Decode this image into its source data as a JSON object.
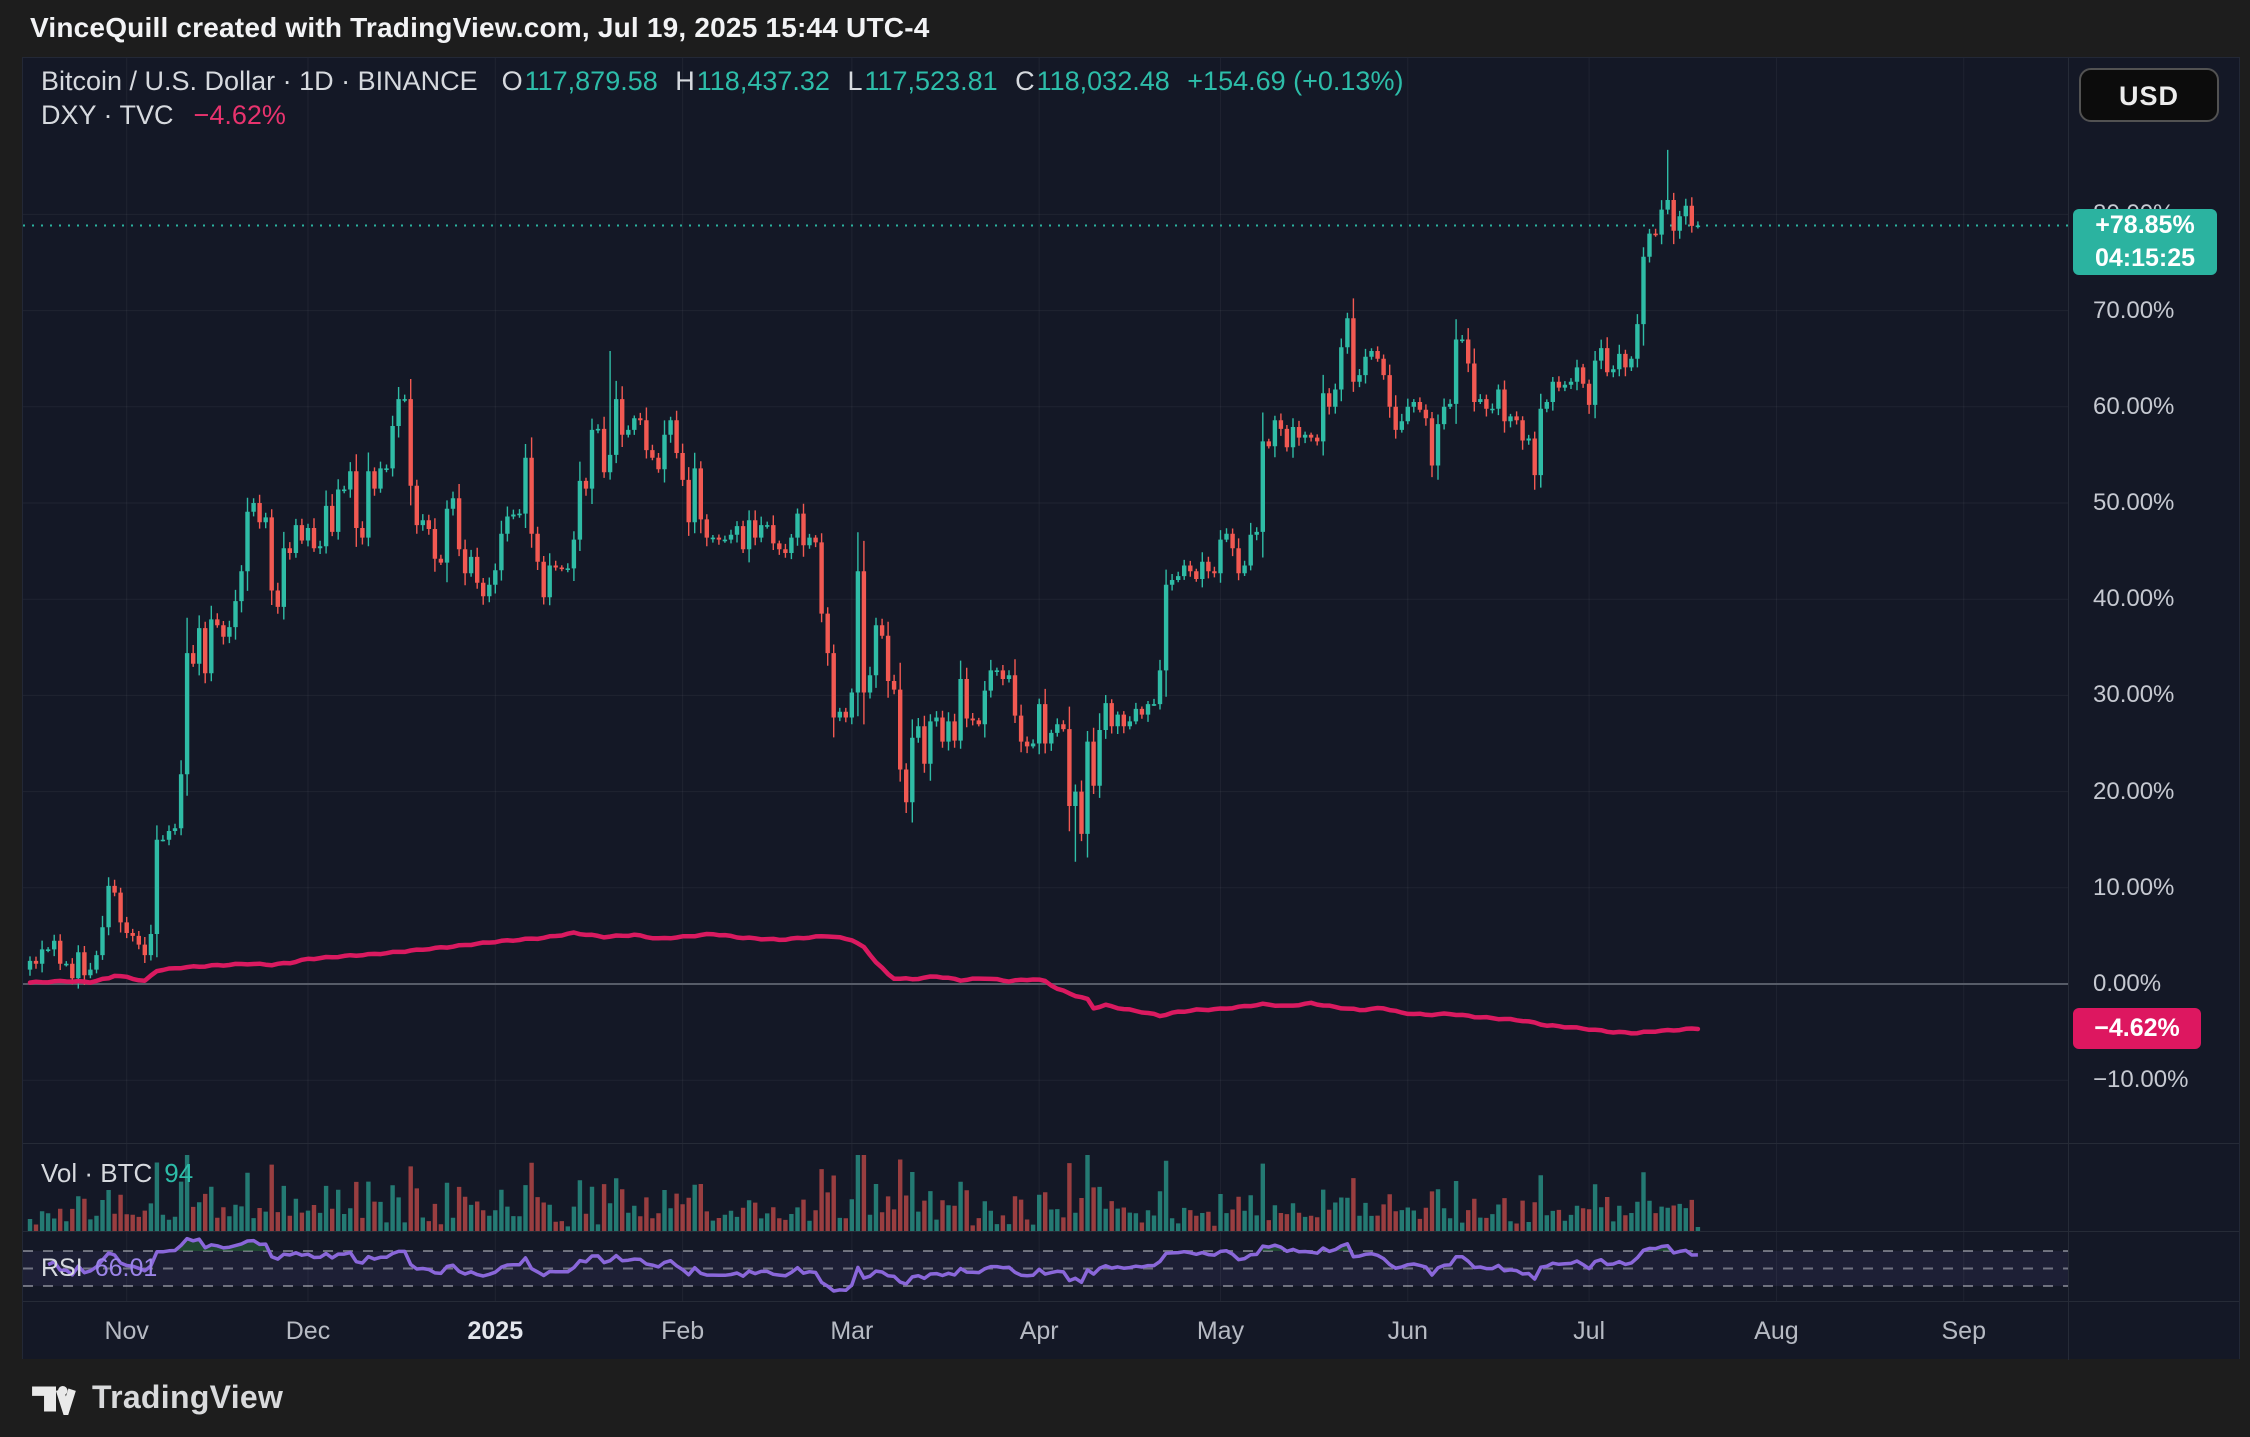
{
  "header_bar": {
    "title": "VinceQuill created with TradingView.com, Jul 19, 2025 15:44 UTC-4"
  },
  "legend": {
    "symbol_row": {
      "title": "Bitcoin / U.S. Dollar · 1D · BINANCE",
      "o_label": "O",
      "o": "117,879.58",
      "h_label": "H",
      "h": "118,437.32",
      "l_label": "L",
      "l": "117,523.81",
      "c_label": "C",
      "c": "118,032.48",
      "change": "+154.69 (+0.13%)"
    },
    "overlay_row": {
      "name": "DXY · TVC",
      "change": "−4.62%"
    }
  },
  "toolbar": {
    "currency_button": "USD"
  },
  "price_axis": {
    "ticks": [
      {
        "label": "80.00%",
        "pct": 80
      },
      {
        "label": "70.00%",
        "pct": 70
      },
      {
        "label": "60.00%",
        "pct": 60
      },
      {
        "label": "50.00%",
        "pct": 50
      },
      {
        "label": "40.00%",
        "pct": 40
      },
      {
        "label": "30.00%",
        "pct": 30
      },
      {
        "label": "20.00%",
        "pct": 20
      },
      {
        "label": "10.00%",
        "pct": 10
      },
      {
        "label": "0.00%",
        "pct": 0
      },
      {
        "label": "−10.00%",
        "pct": -10
      }
    ],
    "price_badge": {
      "value": "+78.85%",
      "countdown": "04:15:25"
    },
    "dxy_badge": {
      "value": "−4.62%"
    }
  },
  "time_axis": {
    "labels": [
      {
        "label": "Nov",
        "day": 16
      },
      {
        "label": "Dec",
        "day": 46
      },
      {
        "label": "2025",
        "day": 77,
        "bold": true
      },
      {
        "label": "Feb",
        "day": 108
      },
      {
        "label": "Mar",
        "day": 136
      },
      {
        "label": "Apr",
        "day": 167
      },
      {
        "label": "May",
        "day": 197
      },
      {
        "label": "Jun",
        "day": 228
      },
      {
        "label": "Jul",
        "day": 258
      },
      {
        "label": "Aug",
        "day": 289
      },
      {
        "label": "Sep",
        "day": 320
      }
    ]
  },
  "volume_pane": {
    "label": "Vol · BTC",
    "value": "94"
  },
  "rsi_pane": {
    "label": "RSI",
    "value": "66.01"
  },
  "footer": {
    "brand": "TradingView"
  },
  "colors": {
    "chart_bg": "#141826",
    "frame_bg": "#1d1d1d",
    "candle_up": "#2fbca6",
    "candle_down": "#f25952",
    "dxy_line": "#da1a60",
    "rsi_line": "#8a67da",
    "teal_text": "#2dbda9",
    "pink_text": "#e8336e",
    "badge_green": "#2bb3a0",
    "badge_pink": "#dd1760",
    "zero_line": "#575c68",
    "grid": "rgba(255,255,255,0.05)"
  },
  "chart_data": {
    "type": "candlestick",
    "title": "Bitcoin / U.S. Dollar 1D BINANCE, percent-change scale vs DXY overlay",
    "scale": "percent-change",
    "ylim": [
      -13,
      92
    ],
    "price_line_pct": 78.85,
    "price_pct_closes": [
      2.4,
      2.1,
      3.6,
      3.6,
      4.5,
      2.1,
      2.1,
      0.6,
      3.3,
      0.9,
      1.5,
      3.0,
      5.9,
      10.2,
      9.5,
      6.4,
      5.3,
      5.0,
      4.1,
      3.0,
      5.2,
      15.0,
      15.0,
      15.9,
      16.2,
      21.8,
      34.4,
      33.3,
      37.0,
      32.3,
      37.9,
      37.3,
      36.1,
      37.1,
      39.8,
      42.9,
      49.1,
      50.0,
      48.0,
      48.5,
      40.9,
      39.2,
      45.3,
      44.8,
      47.7,
      46.1,
      47.4,
      45.3,
      45.5,
      49.7,
      47.0,
      51.4,
      51.4,
      53.3,
      47.4,
      46.4,
      53.3,
      51.5,
      53.6,
      53.6,
      58.0,
      60.8,
      60.8,
      51.8,
      47.7,
      48.2,
      47.3,
      44.2,
      43.8,
      49.4,
      50.5,
      45.2,
      42.7,
      44.4,
      41.7,
      40.3,
      41.5,
      43.0,
      46.8,
      48.6,
      48.8,
      48.9,
      54.7,
      46.8,
      43.9,
      40.2,
      43.5,
      43.3,
      43.2,
      43.2,
      46.2,
      52.3,
      51.5,
      57.6,
      57.7,
      53.2,
      55.0,
      60.8,
      57.1,
      57.6,
      58.8,
      58.6,
      55.5,
      54.7,
      53.5,
      57.1,
      58.6,
      55.2,
      52.4,
      48.0,
      53.6,
      48.3,
      46.4,
      46.4,
      46.2,
      46.2,
      46.7,
      47.6,
      45.2,
      48.2,
      46.4,
      47.7,
      47.7,
      45.8,
      45.2,
      44.8,
      46.4,
      48.9,
      45.6,
      46.4,
      45.9,
      38.5,
      34.4,
      27.7,
      28.3,
      27.7,
      30.3,
      42.9,
      30.3,
      32.1,
      37.3,
      36.2,
      31.5,
      30.6,
      22.3,
      18.9,
      25.6,
      26.8,
      22.9,
      27.3,
      27.7,
      25.2,
      27.3,
      25.3,
      31.7,
      27.6,
      27.4,
      27.0,
      30.5,
      32.6,
      32.6,
      31.7,
      32.1,
      27.9,
      25.2,
      24.7,
      25.0,
      29.1,
      25.0,
      26.1,
      27.0,
      26.5,
      18.5,
      20.0,
      15.6,
      25.2,
      20.6,
      26.4,
      29.2,
      26.8,
      28.0,
      26.8,
      27.3,
      28.6,
      28.0,
      29.1,
      29.1,
      32.6,
      41.5,
      42.0,
      42.4,
      43.5,
      42.9,
      42.1,
      43.9,
      42.9,
      42.7,
      46.2,
      46.8,
      45.3,
      42.7,
      43.5,
      46.7,
      47.0,
      56.4,
      55.9,
      58.6,
      57.7,
      55.8,
      57.9,
      56.8,
      57.1,
      56.8,
      56.4,
      61.4,
      60.0,
      61.8,
      66.2,
      69.2,
      62.6,
      63.3,
      65.2,
      65.8,
      65.0,
      63.3,
      60.0,
      57.6,
      58.5,
      60.0,
      60.5,
      59.7,
      58.8,
      53.9,
      58.2,
      60.0,
      60.3,
      67.0,
      67.0,
      64.5,
      60.5,
      60.8,
      59.8,
      59.8,
      61.8,
      58.5,
      59.0,
      58.6,
      56.5,
      56.7,
      52.9,
      59.8,
      60.5,
      62.6,
      62.0,
      62.3,
      62.6,
      64.1,
      62.4,
      60.2,
      64.8,
      66.1,
      63.6,
      63.9,
      65.5,
      64.1,
      65.0,
      68.6,
      75.6,
      78.0,
      77.9,
      80.5,
      81.5,
      78.3,
      79.8,
      80.9,
      78.8,
      78.85
    ],
    "forced_extremes": {
      "96": {
        "high": 65.8
      },
      "173": {
        "low": 12.7
      },
      "271": {
        "high": 86.7
      }
    },
    "dxy_pct_keyframes": [
      [
        0,
        0.15
      ],
      [
        6,
        0.3
      ],
      [
        10,
        0.2
      ],
      [
        13,
        0.6
      ],
      [
        14,
        0.9
      ],
      [
        16,
        0.7
      ],
      [
        19,
        0.3
      ],
      [
        21,
        1.4
      ],
      [
        25,
        1.7
      ],
      [
        30,
        1.9
      ],
      [
        36,
        2.1
      ],
      [
        40,
        2.0
      ],
      [
        43,
        2.2
      ],
      [
        46,
        2.6
      ],
      [
        52,
        2.9
      ],
      [
        57,
        3.1
      ],
      [
        62,
        3.4
      ],
      [
        70,
        3.9
      ],
      [
        77,
        4.4
      ],
      [
        85,
        4.8
      ],
      [
        90,
        5.3
      ],
      [
        95,
        4.9
      ],
      [
        100,
        5.1
      ],
      [
        104,
        4.7
      ],
      [
        108,
        4.9
      ],
      [
        113,
        5.2
      ],
      [
        118,
        4.8
      ],
      [
        124,
        4.6
      ],
      [
        128,
        4.8
      ],
      [
        132,
        5.0
      ],
      [
        136,
        4.6
      ],
      [
        138,
        3.8
      ],
      [
        140,
        2.3
      ],
      [
        142,
        1.0
      ],
      [
        143,
        0.6
      ],
      [
        146,
        0.5
      ],
      [
        150,
        0.8
      ],
      [
        154,
        0.4
      ],
      [
        158,
        0.6
      ],
      [
        162,
        0.3
      ],
      [
        166,
        0.5
      ],
      [
        168,
        0.3
      ],
      [
        170,
        -0.5
      ],
      [
        173,
        -1.2
      ],
      [
        175,
        -1.6
      ],
      [
        176,
        -2.5
      ],
      [
        178,
        -2.2
      ],
      [
        181,
        -2.6
      ],
      [
        184,
        -2.9
      ],
      [
        187,
        -3.3
      ],
      [
        190,
        -2.9
      ],
      [
        193,
        -2.7
      ],
      [
        197,
        -2.6
      ],
      [
        200,
        -2.4
      ],
      [
        204,
        -2.1
      ],
      [
        208,
        -2.3
      ],
      [
        212,
        -2.0
      ],
      [
        216,
        -2.4
      ],
      [
        220,
        -2.7
      ],
      [
        224,
        -2.5
      ],
      [
        227,
        -3.0
      ],
      [
        231,
        -3.2
      ],
      [
        235,
        -3.1
      ],
      [
        239,
        -3.4
      ],
      [
        243,
        -3.6
      ],
      [
        247,
        -3.8
      ],
      [
        251,
        -4.3
      ],
      [
        255,
        -4.5
      ],
      [
        258,
        -4.7
      ],
      [
        262,
        -5.0
      ],
      [
        266,
        -5.1
      ],
      [
        269,
        -4.9
      ],
      [
        272,
        -4.8
      ],
      [
        274,
        -4.7
      ],
      [
        276,
        -4.62
      ]
    ],
    "rsi": {
      "period": 14,
      "levels": [
        70,
        50,
        30
      ],
      "last_value": 66.01
    },
    "volume": {
      "unit": "BTC",
      "last_value": 94
    }
  }
}
